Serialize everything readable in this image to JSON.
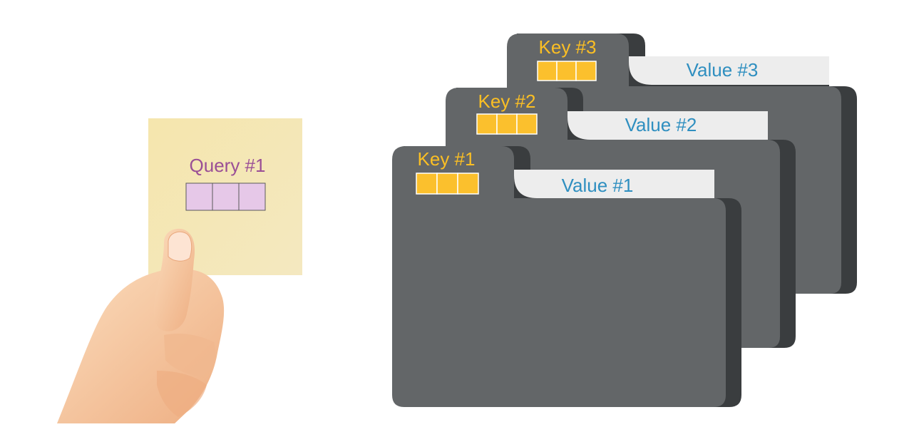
{
  "query": {
    "label": "Query #1",
    "vector_cells": 3,
    "card_color": "#f2e3a8",
    "cell_color": "#e6c8e8",
    "label_color": "#9a4f96"
  },
  "folders": [
    {
      "key_label": "Key #3",
      "value_label": "Value #3"
    },
    {
      "key_label": "Key #2",
      "value_label": "Value #2"
    },
    {
      "key_label": "Key #1",
      "value_label": "Value #1"
    }
  ],
  "colors": {
    "folder_body": "#636668",
    "folder_shadow": "#3a3d3f",
    "key_text": "#fbbf24",
    "key_cell": "#fbc02d",
    "value_tab": "#ededed",
    "value_text": "#2f8fc0",
    "skin": "#f6c9a2",
    "skin_shade": "#e9a77c"
  }
}
